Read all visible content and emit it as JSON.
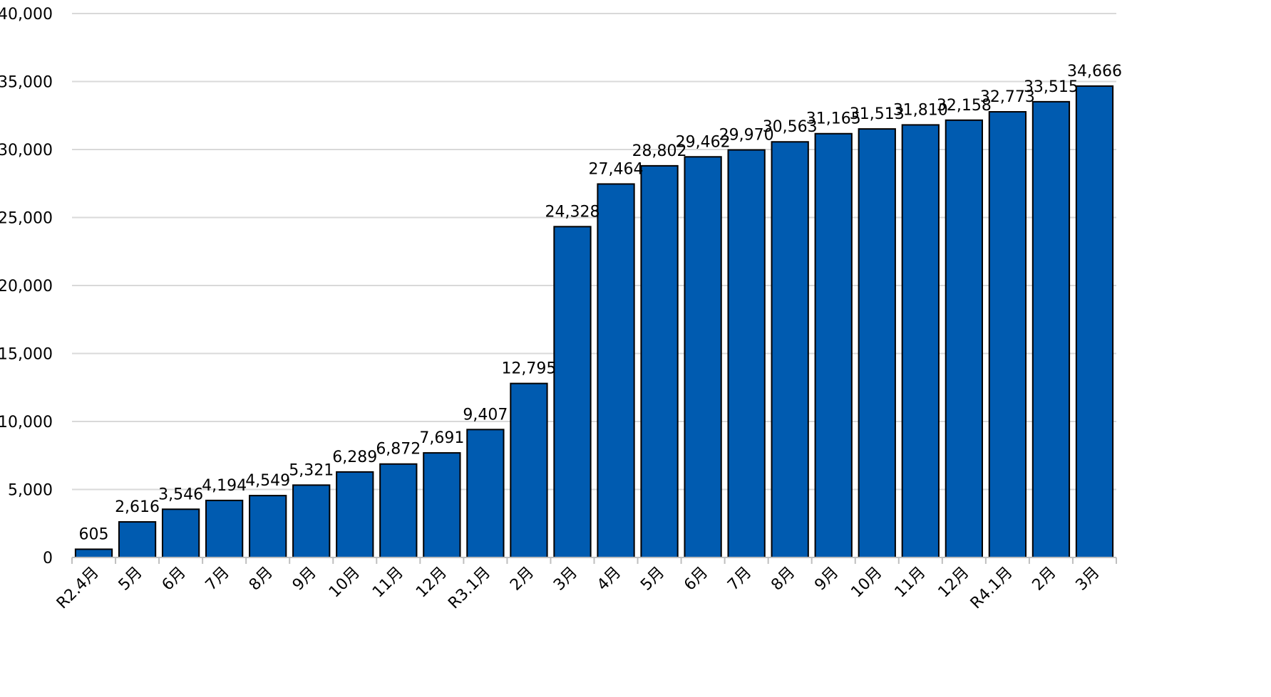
{
  "chart_data": {
    "type": "bar",
    "categories": [
      "R2.4月",
      "5月",
      "6月",
      "7月",
      "8月",
      "9月",
      "10月",
      "11月",
      "12月",
      "R3.1月",
      "2月",
      "3月",
      "4月",
      "5月",
      "6月",
      "7月",
      "8月",
      "9月",
      "10月",
      "11月",
      "12月",
      "R4.1月",
      "2月",
      "3月"
    ],
    "values": [
      605,
      2616,
      3546,
      4194,
      4549,
      5321,
      6289,
      6872,
      7691,
      9407,
      12795,
      24328,
      27464,
      28802,
      29462,
      29970,
      30563,
      31165,
      31513,
      31810,
      32158,
      32773,
      33515,
      34666
    ],
    "value_labels": [
      "605",
      "2,616",
      "3,546",
      "4,194",
      "4,549",
      "5,321",
      "6,289",
      "6,872",
      "7,691",
      "9,407",
      "12,795",
      "24,328",
      "27,464",
      "28,802",
      "29,462",
      "29,970",
      "30,563",
      "31,165",
      "31,513",
      "31,810",
      "32,158",
      "32,773",
      "33,515",
      "34,666"
    ],
    "ylim": [
      0,
      40000
    ],
    "yticks": [
      0,
      5000,
      10000,
      15000,
      20000,
      25000,
      30000,
      35000,
      40000
    ],
    "ytick_labels": [
      "0",
      "5,000",
      "10,000",
      "15,000",
      "20,000",
      "25,000",
      "30,000",
      "35,000",
      "40,000"
    ],
    "grid": true,
    "legend": "none",
    "title": "",
    "xlabel": "",
    "ylabel": "",
    "colors": {
      "bar_fill": "#005bb0",
      "bar_stroke": "#000000",
      "grid": "#d9d9d9"
    }
  }
}
